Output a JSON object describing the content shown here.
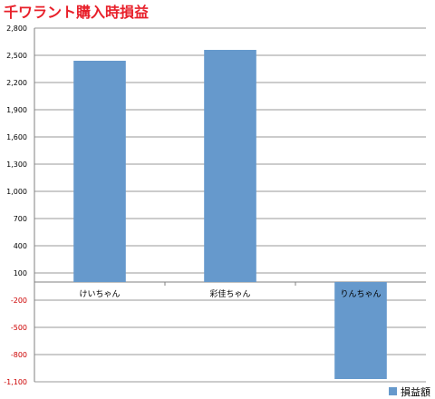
{
  "chart_data": {
    "type": "bar",
    "title": "千ワラント購入時損益",
    "categories": [
      "けいちゃん",
      "彩佳ちゃん",
      "りんちゃん"
    ],
    "series": [
      {
        "name": "損益額",
        "values": [
          2440,
          2560,
          -1070
        ],
        "color": "#6699cc"
      }
    ],
    "ylim": [
      -1100,
      2800
    ],
    "yticks": [
      -1100,
      -800,
      -500,
      -200,
      100,
      400,
      700,
      1000,
      1300,
      1600,
      1900,
      2200,
      2500,
      2800
    ],
    "ytick_labels": [
      "-1,100",
      "-800",
      "-500",
      "-200",
      "100",
      "400",
      "700",
      "1,000",
      "1,300",
      "1,600",
      "1,900",
      "2,200",
      "2,500",
      "2,800"
    ],
    "negative_tick_color": "#cc0000",
    "positive_tick_color": "#000000",
    "grid": true,
    "legend": "bottom-right"
  }
}
